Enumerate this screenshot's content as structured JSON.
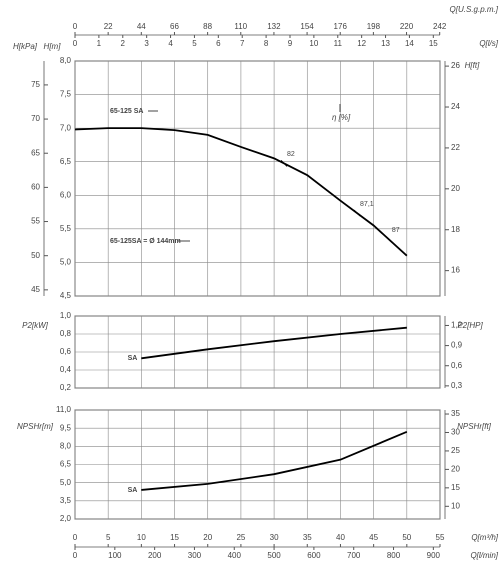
{
  "chart_data": [
    {
      "type": "line",
      "x_top": [
        {
          "label": "Q[U.S.g.p.m.]",
          "lim": [
            0,
            242.2
          ],
          "ticks": [
            0,
            22,
            44,
            66,
            88,
            110,
            132,
            154,
            176,
            198,
            220,
            242
          ]
        },
        {
          "label": "Q[l/s]",
          "lim": [
            0,
            15.28
          ],
          "ticks": [
            0,
            1,
            2,
            3,
            4,
            5,
            6,
            7,
            8,
            9,
            10,
            11,
            12,
            13,
            14,
            15
          ]
        }
      ],
      "xlim": [
        0,
        55
      ],
      "ylabel": "H[m]",
      "ylim": [
        4.5,
        8.0
      ],
      "yticks": [
        {
          "value": 4.5,
          "label": "4,5"
        },
        {
          "value": 5.0,
          "label": "5,0"
        },
        {
          "value": 5.5,
          "label": "5,5"
        },
        {
          "value": 6.0,
          "label": "6,0"
        },
        {
          "value": 6.5,
          "label": "6,5"
        },
        {
          "value": 7.0,
          "label": "7,0"
        },
        {
          "value": 7.5,
          "label": "7,5"
        },
        {
          "value": 8.0,
          "label": "8,0"
        }
      ],
      "y3label": "H[kPa]",
      "y3lim": [
        44.1,
        78.5
      ],
      "y3ticks": [
        45,
        50,
        55,
        60,
        65,
        70,
        75
      ],
      "y2label": "H[ft]",
      "y2lim": [
        14.76,
        26.25
      ],
      "y2ticks": [
        16,
        18,
        20,
        22,
        24,
        26
      ],
      "series": [
        {
          "name": "65-125 SA",
          "color": "#000000",
          "x": [
            0,
            5,
            10,
            15,
            20,
            25,
            30,
            35,
            40,
            45,
            50
          ],
          "values": [
            6.98,
            7.0,
            7.0,
            6.97,
            6.9,
            6.72,
            6.55,
            6.3,
            5.92,
            5.55,
            5.1
          ]
        }
      ],
      "efficiency": {
        "x": [
          31.5,
          42.5,
          47.3
        ],
        "values": [
          82,
          87.1,
          87
        ],
        "value_labels": [
          "82",
          "87,1",
          "87"
        ]
      },
      "annotations": [
        "η [%]",
        "65-125SA = Ø 144mm"
      ],
      "grid": true
    },
    {
      "type": "line",
      "xlim": [
        0,
        55
      ],
      "ylabel": "P2[kW]",
      "ylim": [
        0.2,
        1.0
      ],
      "yticks": [
        {
          "value": 0.2,
          "label": "0,2"
        },
        {
          "value": 0.4,
          "label": "0,4"
        },
        {
          "value": 0.6,
          "label": "0,6"
        },
        {
          "value": 0.8,
          "label": "0,8"
        },
        {
          "value": 1.0,
          "label": "1,0"
        }
      ],
      "y2label": "P2[HP]",
      "y2lim": [
        0.268,
        1.341
      ],
      "y2ticks": [
        {
          "value": 0.3,
          "label": "0,3"
        },
        {
          "value": 0.6,
          "label": "0,6"
        },
        {
          "value": 0.9,
          "label": "0,9"
        },
        {
          "value": 1.2,
          "label": "1,2"
        }
      ],
      "series": [
        {
          "name": "SA",
          "color": "#000000",
          "x": [
            10,
            20,
            30,
            40,
            50
          ],
          "values": [
            0.53,
            0.63,
            0.72,
            0.8,
            0.87
          ]
        }
      ],
      "grid": true
    },
    {
      "type": "line",
      "xlabel": "Q[m³/h]",
      "xlim": [
        0,
        55
      ],
      "xticks": [
        0,
        5,
        10,
        15,
        20,
        25,
        30,
        35,
        40,
        45,
        50,
        55
      ],
      "x2label": "Q[l/min]",
      "x2lim": [
        0,
        916.7
      ],
      "x2ticks": [
        0,
        100,
        200,
        300,
        400,
        500,
        600,
        700,
        800,
        900
      ],
      "ylabel": "NPSHr[m]",
      "ylim": [
        2.0,
        11.0
      ],
      "yticks": [
        {
          "value": 2.0,
          "label": "2,0"
        },
        {
          "value": 3.5,
          "label": "3,5"
        },
        {
          "value": 5.0,
          "label": "5,0"
        },
        {
          "value": 6.5,
          "label": "6,5"
        },
        {
          "value": 8.0,
          "label": "8,0"
        },
        {
          "value": 9.5,
          "label": "9,5"
        },
        {
          "value": 11.0,
          "label": "11,0"
        }
      ],
      "y2label": "NPSHr[ft]",
      "y2lim": [
        6.56,
        36.09
      ],
      "y2ticks": [
        10,
        15,
        20,
        25,
        30,
        35
      ],
      "series": [
        {
          "name": "SA",
          "color": "#000000",
          "x": [
            10,
            20,
            30,
            40,
            50
          ],
          "values": [
            4.4,
            4.9,
            5.7,
            6.9,
            9.2
          ]
        }
      ],
      "grid": true
    }
  ]
}
